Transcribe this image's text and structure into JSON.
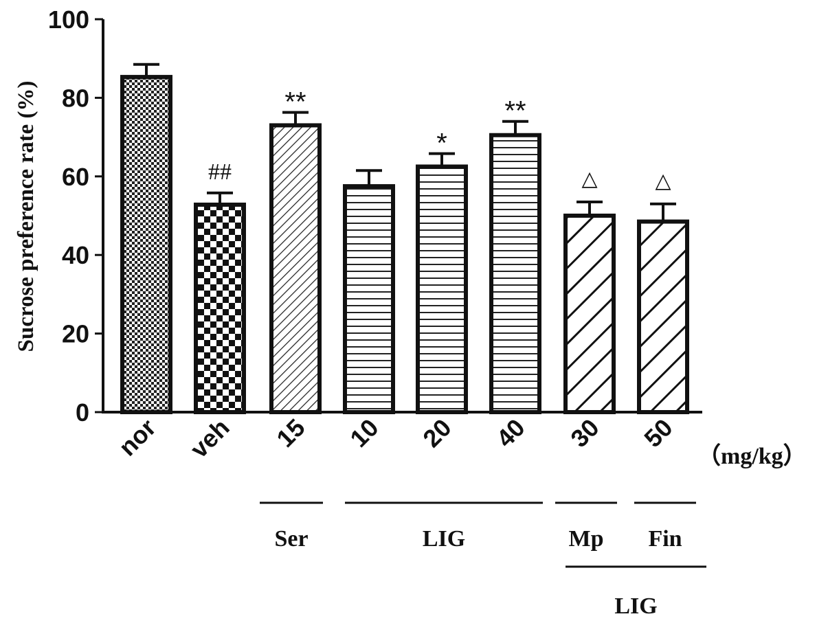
{
  "chart_data": {
    "type": "bar",
    "ylabel": "Sucrose preference rate (%)",
    "ylim": [
      0,
      100
    ],
    "yticks": [
      "0",
      "20",
      "40",
      "60",
      "80",
      "100"
    ],
    "unit_label": "（mg/kg）",
    "categories": [
      "nor",
      "veh",
      "15",
      "10",
      "20",
      "40",
      "30",
      "50"
    ],
    "values": [
      85.3,
      52.8,
      73.0,
      57.5,
      62.5,
      70.5,
      50.0,
      48.5
    ],
    "errors": [
      3.2,
      3.0,
      3.3,
      4.0,
      3.3,
      3.5,
      3.5,
      4.5
    ],
    "patterns": [
      "checker-fine",
      "checker-coarse",
      "diag-fine",
      "horizontal",
      "horizontal",
      "horizontal",
      "diag-wide",
      "diag-wide"
    ],
    "significance": [
      "",
      "##",
      "**",
      "",
      "*",
      "**",
      "△",
      "△"
    ],
    "groups": [
      {
        "label": "Ser",
        "from": 2,
        "to": 2,
        "row": 1
      },
      {
        "label": "LIG",
        "from": 3,
        "to": 5,
        "row": 1
      },
      {
        "label": "Mp",
        "from": 6,
        "to": 6,
        "row": 1
      },
      {
        "label": "Fin",
        "from": 7,
        "to": 7,
        "row": 1
      },
      {
        "label": "LIG",
        "from": 6,
        "to": 7,
        "row": 2
      }
    ],
    "grid": false,
    "legend": "none"
  }
}
